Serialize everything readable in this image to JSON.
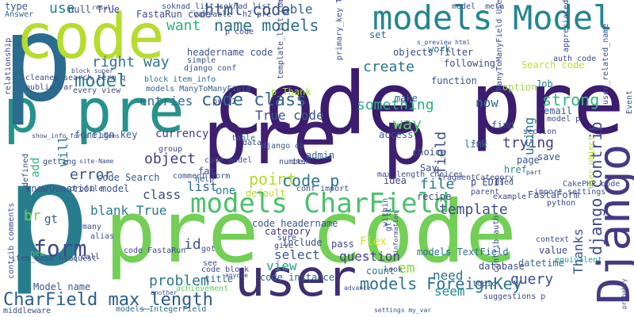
{
  "words": [
    {
      "text": "code pre",
      "color": "#3b1c6f"
    },
    {
      "text": "pre code",
      "color": "#73cf55"
    },
    {
      "text": "p pre",
      "color": "#26928c"
    },
    {
      "text": "pre p",
      "color": "#3e1f70"
    },
    {
      "text": "p",
      "color": "#277d8e"
    },
    {
      "text": "p",
      "color": "#2a6b8e"
    },
    {
      "text": "code",
      "color": "#b6dc2e"
    },
    {
      "text": "models Model",
      "color": "#23868d"
    },
    {
      "text": "user",
      "color": "#3f2f72"
    },
    {
      "text": "Django",
      "color": "#443a83"
    },
    {
      "text": "models CharField",
      "color": "#4bc16d"
    },
    {
      "text": "models ForeignKey",
      "color": "#2c728e"
    },
    {
      "text": "CharField max_length",
      "color": "#2b5c8a"
    },
    {
      "text": "code class",
      "color": "#31688e"
    },
    {
      "text": "html code",
      "color": "#3b528b"
    },
    {
      "text": "name models",
      "color": "#2d708e"
    },
    {
      "text": "want",
      "color": "#2db27d"
    },
    {
      "text": "form",
      "color": "#3f4a8a"
    },
    {
      "text": "model",
      "color": "#287c8e"
    },
    {
      "text": "right way",
      "color": "#2c738e"
    },
    {
      "text": "use",
      "color": "#277f8e"
    },
    {
      "text": "able",
      "color": "#355f8d"
    },
    {
      "text": "True code",
      "color": "#39558c"
    },
    {
      "text": "entries",
      "color": "#2f6b8e"
    },
    {
      "text": "object",
      "color": "#453882"
    },
    {
      "text": "error",
      "color": "#3b528b"
    },
    {
      "text": "blank True",
      "color": "#29798e"
    },
    {
      "text": "class",
      "color": "#3e4a89"
    },
    {
      "text": "list",
      "color": "#31678e"
    },
    {
      "text": "point",
      "color": "#b2dd2d"
    },
    {
      "text": "code p",
      "color": "#2a768e"
    },
    {
      "text": "one",
      "color": "#287d8e"
    },
    {
      "text": "id",
      "color": "#3a538b"
    },
    {
      "text": "problem",
      "color": "#2a778e"
    },
    {
      "text": "select",
      "color": "#39568c"
    },
    {
      "text": "view",
      "color": "#21a685"
    },
    {
      "text": "question",
      "color": "#433e85"
    },
    {
      "text": "em",
      "color": "#8fd744"
    },
    {
      "text": "need",
      "color": "#2c718e"
    },
    {
      "text": "seem",
      "color": "#238a8d"
    },
    {
      "text": "query",
      "color": "#3d4d8a"
    },
    {
      "text": "file",
      "color": "#2c718e"
    },
    {
      "text": "template",
      "color": "#3e4c8a"
    },
    {
      "text": "trying",
      "color": "#433d84"
    },
    {
      "text": "strong",
      "color": "#35b779"
    },
    {
      "text": "something",
      "color": "#2ab07f"
    },
    {
      "text": "way",
      "color": "#5ac864"
    },
    {
      "text": "create",
      "color": "#2c738e"
    },
    {
      "text": "now",
      "color": "#2f6c8e"
    },
    {
      "text": "field",
      "color": "#3e4c8a"
    },
    {
      "text": "using",
      "color": "#2a778e"
    },
    {
      "text": "Thanks",
      "color": "#3b528b"
    },
    {
      "text": "django contrib",
      "color": "#3f4889"
    },
    {
      "text": "code headername",
      "color": "#3a548c"
    },
    {
      "text": "category",
      "color": "#453581"
    },
    {
      "text": "include",
      "color": "#3b528b"
    },
    {
      "text": "Flex",
      "color": "#d2e21b"
    },
    {
      "text": "pass",
      "color": "#404588"
    },
    {
      "text": "count",
      "color": "#2a778e"
    },
    {
      "text": "database",
      "color": "#3e4a89"
    },
    {
      "text": "models TextField",
      "color": "#2f6c8e"
    },
    {
      "text": "datetime",
      "color": "#30698e"
    },
    {
      "text": "value",
      "color": "#3e4989"
    },
    {
      "text": "code instance",
      "color": "#345f8d"
    },
    {
      "text": "Model name",
      "color": "#39568c"
    },
    {
      "text": "title",
      "color": "#31678e"
    },
    {
      "text": "br",
      "color": "#77d153"
    },
    {
      "text": "gt",
      "color": "#38598c"
    },
    {
      "text": "will",
      "color": "#2d718e"
    },
    {
      "text": "add",
      "color": "#2fb47c"
    },
    {
      "text": "know",
      "color": "#3d4d8a"
    },
    {
      "text": "Question model",
      "color": "#3b528b"
    },
    {
      "text": "code Search",
      "color": "#39558c"
    },
    {
      "text": "access",
      "color": "#365c8d"
    },
    {
      "text": "choice",
      "color": "#3a538b"
    },
    {
      "text": "admin",
      "color": "#2d708e"
    },
    {
      "text": "recipe",
      "color": "#3f4788"
    },
    {
      "text": "Say",
      "color": "#3d4e8a"
    },
    {
      "text": "idea",
      "color": "#3e4a89"
    },
    {
      "text": "p EDIT",
      "color": "#404588"
    },
    {
      "text": "FastaForm",
      "color": "#3b518b"
    },
    {
      "text": "href",
      "color": "#24878e"
    },
    {
      "text": "page",
      "color": "#3b528b"
    },
    {
      "text": "link",
      "color": "#2e6f8e"
    },
    {
      "text": "find",
      "color": "#3a548c"
    },
    {
      "text": "make",
      "color": "#31678e"
    },
    {
      "text": "objects filter",
      "color": "#3d4d8a"
    },
    {
      "text": "set",
      "color": "#2f6b8e"
    },
    {
      "text": "work",
      "color": "#2e6e8e"
    },
    {
      "text": "following",
      "color": "#3e4a89"
    },
    {
      "text": "function",
      "color": "#3c4f8a"
    },
    {
      "text": "Search code",
      "color": "#bddf26"
    },
    {
      "text": "option",
      "color": "#9bd93c"
    },
    {
      "text": "Job",
      "color": "#2a788e"
    },
    {
      "text": "email",
      "color": "#38598c"
    },
    {
      "text": "save",
      "color": "#3a548c"
    },
    {
      "text": "p Thank",
      "color": "#a2da37"
    },
    {
      "text": "models ManyToManyField",
      "color": "#365d8d"
    },
    {
      "text": "FastaRun code",
      "color": "#3e4c8a"
    },
    {
      "text": "null True",
      "color": "#3f4889"
    },
    {
      "text": "type",
      "color": "#39558c"
    },
    {
      "text": "Answer",
      "color": "#32648e"
    },
    {
      "text": "p code",
      "color": "#3e4c8a"
    },
    {
      "text": "headername code",
      "color": "#3b518b"
    },
    {
      "text": "simple",
      "color": "#3b528b"
    },
    {
      "text": "django conf",
      "color": "#3d4d8a"
    },
    {
      "text": "foreign key",
      "color": "#345e8d"
    },
    {
      "text": "currency",
      "color": "#433e85"
    },
    {
      "text": "far",
      "color": "#3b518b"
    },
    {
      "text": "help",
      "color": "#3c4f8a"
    },
    {
      "text": "default",
      "color": "#b5de2b"
    },
    {
      "text": "many",
      "color": "#3c4f8a"
    },
    {
      "text": "alias",
      "color": "#39568c"
    },
    {
      "text": "new",
      "color": "#5dc863"
    },
    {
      "text": "contrib comments",
      "color": "#3b528b"
    },
    {
      "text": "achievement",
      "color": "#67cc5c"
    },
    {
      "text": "middleware",
      "color": "#3f4889"
    },
    {
      "text": "models IntegerField",
      "color": "#2e6e8e"
    },
    {
      "text": "see",
      "color": "#3d4e8a"
    },
    {
      "text": "code block",
      "color": "#3f4788"
    },
    {
      "text": "code FastaRun",
      "color": "#404688"
    },
    {
      "text": "item_base html",
      "color": "#3d4d8a"
    },
    {
      "text": "request",
      "color": "#32648e"
    },
    {
      "text": "call",
      "color": "#472c7a"
    },
    {
      "text": "look",
      "color": "#3d4d8a"
    },
    {
      "text": "topic",
      "color": "#3b528b"
    },
    {
      "text": "suggestions p",
      "color": "#3f4788"
    },
    {
      "text": "context",
      "color": "#3e4989"
    },
    {
      "text": "equivalent",
      "color": "#1f9a8a"
    },
    {
      "text": "parent",
      "color": "#3f4889"
    },
    {
      "text": "import settings",
      "color": "#3b528b"
    },
    {
      "text": "example",
      "color": "#3f4889"
    },
    {
      "text": "CakePHP code",
      "color": "#3b528b"
    },
    {
      "text": "python",
      "color": "#3e4989"
    },
    {
      "text": "relationship",
      "color": "#3f4788"
    },
    {
      "text": "cleaned_search_term q",
      "color": "#3e4c8a"
    },
    {
      "text": "public var",
      "color": "#3d4d8a"
    },
    {
      "text": "every view",
      "color": "#3f4788"
    },
    {
      "text": "block item_info",
      "color": "#2e6f8e"
    },
    {
      "text": "variable",
      "color": "#39568c"
    },
    {
      "text": "h2 pre",
      "color": "#3f4889"
    },
    {
      "text": "soknad_list soknad_list",
      "color": "#3b518b"
    },
    {
      "text": "model _meta",
      "color": "#3d4d8a"
    },
    {
      "text": "appreciated p",
      "color": "#3e4c8a"
    },
    {
      "text": "auth code",
      "color": "#3e4a89"
    },
    {
      "text": "django db",
      "color": "#3b528b"
    },
    {
      "text": "table",
      "color": "#31678e"
    },
    {
      "text": "data",
      "color": "#3a548c"
    },
    {
      "text": "py h2",
      "color": "#433d84"
    },
    {
      "text": "Event",
      "color": "#3d4e8a"
    },
    {
      "text": "user_related_name",
      "color": "#3b518b"
    },
    {
      "text": "model p",
      "color": "#3e4c8a"
    },
    {
      "text": "section",
      "color": "#3f4788"
    },
    {
      "text": "profile",
      "color": "#3d4d8a"
    },
    {
      "text": "User object",
      "color": "#b5de2b"
    },
    {
      "text": "gt lt",
      "color": "#3b528b"
    },
    {
      "text": "getting",
      "color": "#3d4d8a"
    },
    {
      "text": "defined",
      "color": "#3e4c8a"
    },
    {
      "text": "group",
      "color": "#3f4889"
    },
    {
      "text": "code model",
      "color": "#3d4e8a"
    },
    {
      "text": "comment form",
      "color": "#3b518b"
    },
    {
      "text": "number",
      "color": "#3e4c8a"
    },
    {
      "text": "item",
      "color": "#3f4788"
    },
    {
      "text": "conf import",
      "color": "#3d4d8a"
    },
    {
      "text": "fragmentCategory",
      "color": "#3e4c8a"
    },
    {
      "text": "used",
      "color": "#3b528b"
    },
    {
      "text": "sure",
      "color": "#3a548c"
    },
    {
      "text": "give",
      "color": "#3d4d8a"
    },
    {
      "text": "got",
      "color": "#3e4a89"
    },
    {
      "text": "within",
      "color": "#3b518b"
    },
    {
      "text": "contrib auth",
      "color": "#3d4d8a"
    },
    {
      "text": "primary_key True",
      "color": "#3e4c8a"
    },
    {
      "text": "ManyToManyField User",
      "color": "#3d4d8a"
    },
    {
      "text": "template_list comment",
      "color": "#3f4788"
    },
    {
      "text": "max_length choices",
      "color": "#3e4c8a"
    },
    {
      "text": "settings my_var",
      "color": "#3d4e8a"
    },
    {
      "text": "s_preview html",
      "color": "#3b518b"
    },
    {
      "text": "anyone",
      "color": "#3e4a89"
    },
    {
      "text": "show_info_for_all_items",
      "color": "#3f4788"
    },
    {
      "text": "site-Name",
      "color": "#3d4d8a"
    },
    {
      "text": "block super",
      "color": "#3e4c8a"
    },
    {
      "text": "advance",
      "color": "#3b528b"
    },
    {
      "text": "another",
      "color": "#3d4d8a"
    },
    {
      "text": "result",
      "color": "#3e4a89"
    },
    {
      "text": "information",
      "color": "#3f4788"
    },
    {
      "text": "part",
      "color": "#3d4e8a"
    },
    {
      "text": "probably",
      "color": "#3e4c8a"
    },
    {
      "text": "test",
      "color": "#3b518b"
    },
    {
      "text": "show_info_for_all_items",
      "color": "#3d4d8a"
    },
    {
      "text": "categories",
      "color": "#3e4a89"
    }
  ]
}
